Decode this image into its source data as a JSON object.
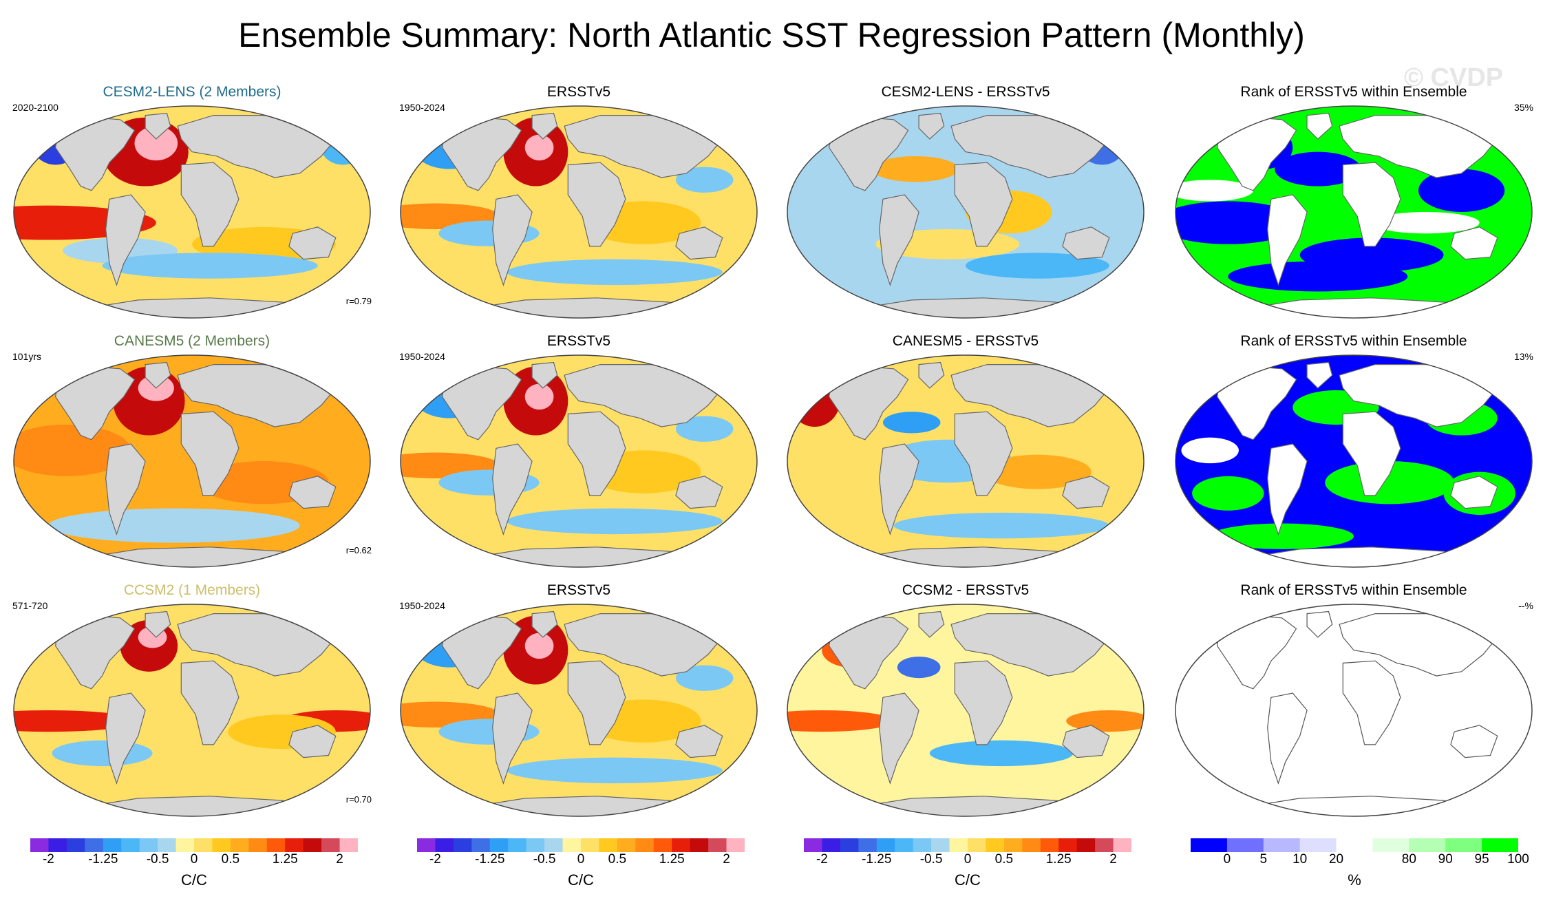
{
  "title": "Ensemble Summary: North Atlantic SST Regression Pattern (Monthly)",
  "watermark": "© CVDP",
  "colors": {
    "land": "#d6d6d6",
    "regression_palette": [
      "#8a2be2",
      "#3a1ee6",
      "#2b3fe0",
      "#3f6fe6",
      "#2f9ef5",
      "#4cb7f7",
      "#7cc8f5",
      "#a9d6ef",
      "#fff59e",
      "#ffe066",
      "#ffc91f",
      "#ffad1f",
      "#ff8a14",
      "#ff5a0a",
      "#e61e0a",
      "#c40a0a",
      "#d44a5a",
      "#ffb3c0"
    ],
    "rank_palette": [
      "#0000ff",
      "#7070ff",
      "#b8b8ff",
      "#dedeff",
      "#ffffff",
      "#dfffdf",
      "#b5ffb5",
      "#7fff7f",
      "#00ff00"
    ]
  },
  "rows": [
    {
      "model": {
        "title": "CESM2-LENS (2 Members)",
        "title_color": "#1f6b8c",
        "years": "2020-2100",
        "corr": "r=0.79"
      },
      "obs": {
        "title": "ERSSTv5",
        "years": "1950-2024"
      },
      "diff": {
        "title": "CESM2-LENS - ERSSTv5"
      },
      "rank": {
        "title": "Rank of ERSSTv5 within Ensemble",
        "pct": "35%"
      }
    },
    {
      "model": {
        "title": "CANESM5 (2 Members)",
        "title_color": "#5a7a4a",
        "years": "101yrs",
        "corr": "r=0.62"
      },
      "obs": {
        "title": "ERSSTv5",
        "years": "1950-2024"
      },
      "diff": {
        "title": "CANESM5 - ERSSTv5"
      },
      "rank": {
        "title": "Rank of ERSSTv5 within Ensemble",
        "pct": "13%"
      }
    },
    {
      "model": {
        "title": "CCSM2 (1 Members)",
        "title_color": "#cdbf6a",
        "years": "571-720",
        "corr": "r=0.70"
      },
      "obs": {
        "title": "ERSSTv5",
        "years": "1950-2024"
      },
      "diff": {
        "title": "CCSM2 - ERSSTv5"
      },
      "rank": {
        "title": "Rank of ERSSTv5 within Ensemble",
        "pct": "--%"
      }
    }
  ],
  "chart_data": [
    {
      "type": "heatmap",
      "title": "Ensemble Summary: North Atlantic SST Regression Pattern (Monthly)",
      "description_grid": "3 rows x 4 columns of global map panels",
      "columns": [
        "Model regression",
        "ERSSTv5",
        "Model - ERSSTv5",
        "Rank of ERSSTv5 within Ensemble"
      ],
      "pattern_correlations": {
        "CESM2-LENS": 0.79,
        "CANESM5": 0.62,
        "CCSM2": 0.7
      },
      "rank_percent": {
        "CESM2-LENS": 35,
        "CANESM5": 13,
        "CCSM2": null
      }
    },
    {
      "type": "colorbar",
      "unit": "C/C",
      "range": [
        -2,
        2
      ],
      "levels": 18,
      "tick_labels": [
        "-2",
        "-1.25",
        "-0.5",
        "0",
        "0.5",
        "1.25",
        "2"
      ],
      "tick_values": [
        -2,
        -1.25,
        -0.5,
        0,
        0.5,
        1.25,
        2
      ]
    },
    {
      "type": "colorbar",
      "unit": "%",
      "range": [
        0,
        100
      ],
      "levels": 9,
      "tick_labels": [
        "0",
        "5",
        "10",
        "20",
        "80",
        "90",
        "95",
        "100"
      ],
      "tick_positions_box": [
        1,
        2,
        3,
        4,
        6,
        7,
        8,
        9
      ]
    }
  ],
  "colorbar_labels": {
    "regression_unit": "C/C",
    "regression_ticks": [
      "-2",
      "-1.25",
      "-0.5",
      "0",
      "0.5",
      "1.25",
      "2"
    ],
    "rank_unit": "%",
    "rank_ticks": [
      "0",
      "5",
      "10",
      "20",
      "80",
      "90",
      "95",
      "100"
    ]
  }
}
